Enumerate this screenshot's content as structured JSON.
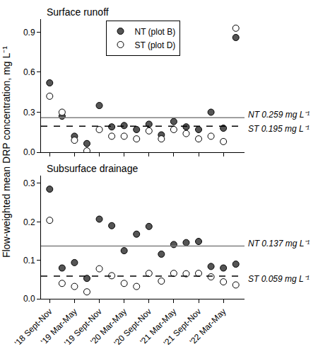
{
  "chart_data": [
    {
      "type": "scatter",
      "title": "Surface runoff",
      "y_label": "Flow-weighted mean DRP concentration, mg L⁻¹",
      "categories": [
        "'18 Sept-Nov",
        null,
        "'19 Mar-May",
        null,
        "'19 Sept-Nov",
        null,
        "'20 Mar-May",
        null,
        "'20 Sept-Nov",
        null,
        "'21 Mar-May",
        null,
        "'21 Sept-Nov",
        null,
        "'22 Mar-May",
        null
      ],
      "series": [
        {
          "name": "NT (plot B)",
          "color": "#555555",
          "marker": "circle",
          "values": [
            0.52,
            0.27,
            0.12,
            0.065,
            0.35,
            0.19,
            0.2,
            0.17,
            0.21,
            0.13,
            0.23,
            0.19,
            0.17,
            0.3,
            0.18,
            0.86
          ]
        },
        {
          "name": "ST (plot D)",
          "color": "#ffffff",
          "marker": "circle",
          "values": [
            0.42,
            0.3,
            0.09,
            0.01,
            0.17,
            0.12,
            0.12,
            0.1,
            0.16,
            0.1,
            0.17,
            0.14,
            0.1,
            0.12,
            0.08,
            0.93
          ]
        }
      ],
      "reference_lines": [
        {
          "value": 0.259,
          "label": "NT 0.259 mg L⁻¹",
          "color": "#808080",
          "line_style": "solid"
        },
        {
          "value": 0.195,
          "label": "ST 0.195 mg L⁻¹",
          "color": "#000000",
          "line_style": "dashed"
        }
      ],
      "ylim": [
        0,
        1.0
      ],
      "yticks": [
        {
          "value": 0,
          "label": "0.0"
        },
        0.3,
        0.6,
        0.9
      ],
      "legend": "top",
      "tick_labels": "y",
      "grid": false
    },
    {
      "type": "scatter",
      "title": "Subsurface drainage",
      "categories": [
        "'18 Sept-Nov",
        null,
        "'19 Mar-May",
        null,
        "'19 Sept-Nov",
        null,
        "'20 Mar-May",
        null,
        "'20 Sept-Nov",
        null,
        "'21 Mar-May",
        null,
        "'21 Sept-Nov",
        null,
        "'22 Mar-May",
        null
      ],
      "series": [
        {
          "name": "NT (plot B)",
          "color": "#555555",
          "marker": "circle",
          "values": [
            0.285,
            0.08,
            0.094,
            0.053,
            0.207,
            0.19,
            0.125,
            0.168,
            0.188,
            0.116,
            0.141,
            0.146,
            0.149,
            0.084,
            0.08,
            0.09
          ]
        },
        {
          "name": "ST (plot D)",
          "color": "#ffffff",
          "marker": "circle",
          "values": [
            0.204,
            0.04,
            0.032,
            0.018,
            0.078,
            0.06,
            0.04,
            0.032,
            0.066,
            0.046,
            0.066,
            0.065,
            0.066,
            0.057,
            0.044,
            0.036
          ]
        }
      ],
      "reference_lines": [
        {
          "value": 0.137,
          "label": "NT 0.137 mg L⁻¹",
          "color": "#808080",
          "line_style": "solid"
        },
        {
          "value": 0.059,
          "label": "ST 0.059 mg L⁻¹",
          "color": "#000000",
          "line_style": "dashed"
        }
      ],
      "ylim": [
        0,
        0.32
      ],
      "yticks": [
        {
          "value": 0,
          "label": "0.0"
        },
        0.1,
        0.2,
        0.3
      ],
      "grid": false
    }
  ]
}
